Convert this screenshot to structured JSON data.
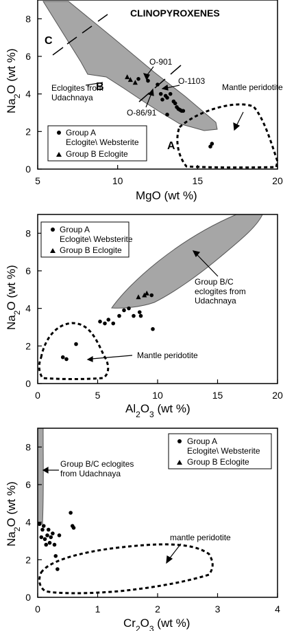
{
  "chart_data": [
    {
      "type": "scatter",
      "title": "CLINOPYROXENES",
      "xlabel": "MgO (wt %)",
      "ylabel": "Na2O (wt %)",
      "xlim": [
        5,
        20
      ],
      "ylim": [
        0,
        9
      ],
      "xticks": [
        "5",
        "10",
        "15",
        "20"
      ],
      "yticks": [
        "0",
        "2",
        "4",
        "6",
        "8"
      ],
      "legend_position": "bottom-left",
      "series": [
        {
          "name": "Group A Eclogite\\ Websterite",
          "marker": "circle",
          "x": [
            11.3,
            11.9,
            12.5,
            12.7,
            12.8,
            13.0,
            13.1,
            13.3,
            13.5,
            13.6,
            13.7,
            13.8,
            13.9,
            14.0,
            14.1,
            13.1,
            15.8,
            15.9
          ],
          "y": [
            4.8,
            4.7,
            4.5,
            4.0,
            3.7,
            3.9,
            3.8,
            4.0,
            3.6,
            3.5,
            3.3,
            3.2,
            3.15,
            3.1,
            3.1,
            2.9,
            1.2,
            1.35
          ]
        },
        {
          "name": "Group B Eclogite",
          "marker": "triangle",
          "x": [
            10.6,
            10.8,
            11.1
          ],
          "y": [
            4.9,
            4.75,
            4.6
          ]
        }
      ],
      "field_labels": {
        "group_b_c": "Eclogites from Udachnaya",
        "mantle": "Mantle peridotite"
      },
      "annotations": [
        "C",
        "B",
        "A",
        "O-901",
        "O-1103",
        "O-86/91"
      ]
    },
    {
      "type": "scatter",
      "xlabel": "Al2O3 (wt %)",
      "ylabel": "Na2O (wt %)",
      "xlim": [
        0,
        20
      ],
      "ylim": [
        0,
        9
      ],
      "xticks": [
        "0",
        "5",
        "10",
        "15",
        "20"
      ],
      "yticks": [
        "0",
        "2",
        "4",
        "6",
        "8"
      ],
      "legend_position": "top-left",
      "series": [
        {
          "name": "Group A Eclogite\\ Websterite",
          "marker": "circle",
          "x": [
            2.1,
            2.4,
            3.2,
            5.2,
            5.6,
            5.9,
            6.3,
            6.8,
            7.2,
            7.6,
            8.0,
            8.5,
            8.6,
            9.6,
            9.5
          ],
          "y": [
            1.4,
            1.3,
            2.1,
            3.3,
            3.2,
            3.4,
            3.2,
            3.6,
            3.9,
            4.0,
            3.6,
            3.8,
            3.6,
            2.9,
            4.7
          ]
        },
        {
          "name": "Group B Eclogite",
          "marker": "triangle",
          "x": [
            8.4,
            8.9,
            9.1
          ],
          "y": [
            4.6,
            4.7,
            4.8
          ]
        }
      ],
      "field_labels": {
        "group_b_c": "Group B/C eclogites from Udachnaya",
        "mantle": "Mantle peridotite"
      }
    },
    {
      "type": "scatter",
      "xlabel": "Cr2O3 (wt %)",
      "ylabel": "Na2O (wt %)",
      "xlim": [
        0,
        4
      ],
      "ylim": [
        0,
        9
      ],
      "xticks": [
        "0",
        "1",
        "2",
        "3",
        "4"
      ],
      "yticks": [
        "0",
        "2",
        "4",
        "6",
        "8"
      ],
      "legend_position": "top-right",
      "series": [
        {
          "name": "Group A Eclogite\\ Websterite",
          "marker": "circle",
          "x": [
            0.03,
            0.06,
            0.08,
            0.1,
            0.12,
            0.14,
            0.16,
            0.18,
            0.2,
            0.22,
            0.25,
            0.28,
            0.3,
            0.33,
            0.36,
            0.55,
            0.58,
            0.6
          ],
          "y": [
            3.9,
            3.2,
            3.6,
            3.8,
            3.1,
            2.8,
            3.3,
            3.6,
            2.9,
            3.2,
            3.4,
            2.8,
            2.2,
            1.5,
            3.3,
            4.5,
            3.8,
            3.7
          ]
        },
        {
          "name": "Group B Eclogite",
          "marker": "triangle",
          "x": [],
          "y": []
        }
      ],
      "field_labels": {
        "group_b_c": "Group B/C eclogites from Udachnaya",
        "mantle": "mantle peridotite"
      }
    }
  ]
}
